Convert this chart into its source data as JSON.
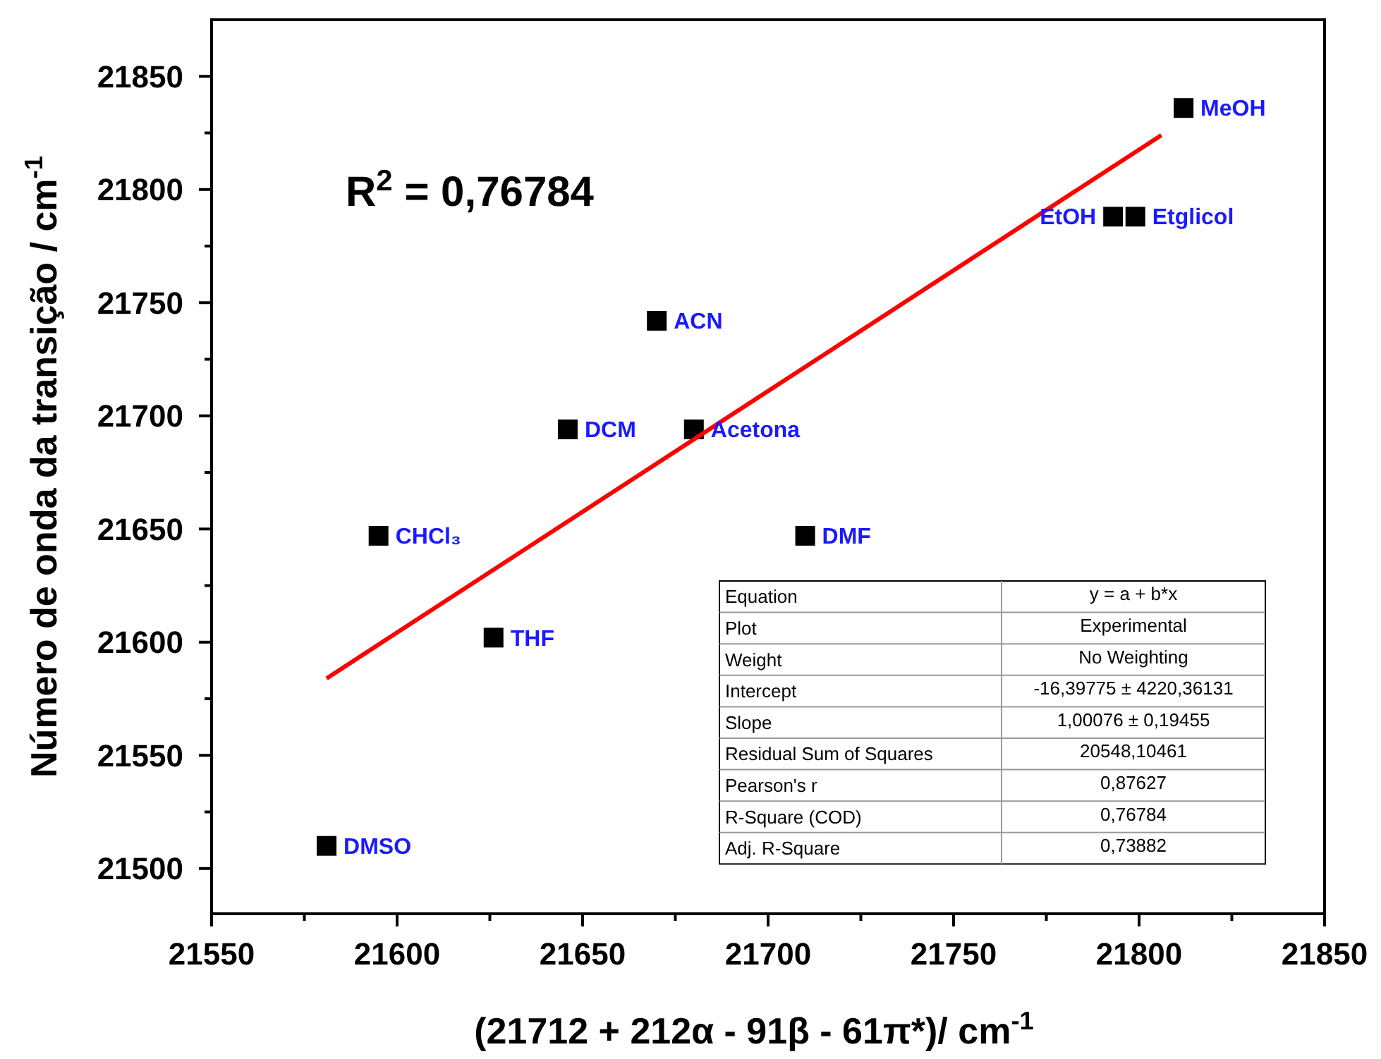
{
  "chart_data": {
    "type": "scatter",
    "xlabel": "(21712 + 212α - 91β - 61π*)/ cm$^{-1}$",
    "ylabel": "Número de onda da transição / cm$^{-1}$",
    "xlim": [
      21550,
      21850
    ],
    "xticks": [
      21550,
      {
        "value": 21575,
        "label": null
      },
      21600,
      {
        "value": 21625,
        "label": null
      },
      21650,
      {
        "value": 21675,
        "label": null
      },
      21700,
      {
        "value": 21725,
        "label": null
      },
      21750,
      {
        "value": 21775,
        "label": null
      },
      21800,
      {
        "value": 21825,
        "label": null
      },
      21850
    ],
    "ylim": [
      21480,
      21875
    ],
    "yticks": [
      21500,
      {
        "value": 21525,
        "label": null
      },
      21550,
      {
        "value": 21575,
        "label": null
      },
      21600,
      {
        "value": 21625,
        "label": null
      },
      21650,
      {
        "value": 21675,
        "label": null
      },
      21700,
      {
        "value": 21725,
        "label": null
      },
      21750,
      {
        "value": 21775,
        "label": null
      },
      21800,
      {
        "value": 21825,
        "label": null
      },
      21850
    ],
    "grid": false,
    "series": [
      {
        "color": "#000000",
        "marker": "square",
        "x": [
          21812,
          21793,
          21799,
          21670,
          21646,
          21680,
          21595,
          21710,
          21626,
          21581
        ],
        "values": [
          21836,
          21788,
          21788,
          21742,
          21694,
          21694,
          21647,
          21647,
          21602,
          21510
        ]
      },
      {
        "type": "line",
        "color": "#ff0000",
        "marker": "none",
        "line_style": "solid",
        "x": [
          21581,
          21806
        ],
        "values": [
          21584,
          21824
        ]
      }
    ],
    "annotations": [
      {
        "text": "MeOH",
        "x": 21812,
        "y": 21836
      },
      {
        "text": "EtOH",
        "x": 21793,
        "y": 21788
      },
      {
        "text": "Etglicol",
        "x": 21799,
        "y": 21788
      },
      {
        "text": "ACN",
        "x": 21670,
        "y": 21742
      },
      {
        "text": "DCM",
        "x": 21646,
        "y": 21694
      },
      {
        "text": "Acetona",
        "x": 21680,
        "y": 21694
      },
      {
        "text": "CHCl₃",
        "x": 21595,
        "y": 21647
      },
      {
        "text": "DMF",
        "x": 21710,
        "y": 21647
      },
      {
        "text": "THF",
        "x": 21626,
        "y": 21602
      },
      {
        "text": "DMSO",
        "x": 21581,
        "y": 21510
      },
      "R$^{2}$ = 0,76784",
      "Equation",
      "y = a + b*x",
      "Plot",
      "Experimental",
      "Weight",
      "No Weighting",
      "Intercept",
      "-16,39775 ± 4220,36131",
      "Slope",
      "1,00076 ± 0,19455",
      "Residual Sum of Squares",
      "20548,10461",
      "Pearson's r",
      "0,87627",
      "R-Square (COD)",
      "0,76784",
      "Adj. R-Square",
      "0,73882"
    ]
  }
}
